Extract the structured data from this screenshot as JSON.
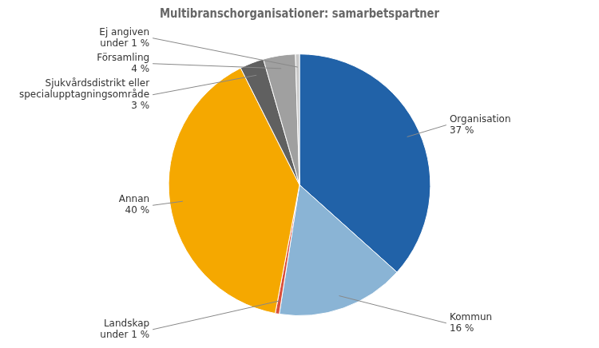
{
  "chart_data": {
    "type": "pie",
    "title": "Multibranschorganisationer: samarbetspartner",
    "categories": [
      "Organisation",
      "Kommun",
      "Landskap",
      "Annan",
      "Sjukvårdsdistrikt eller\nspecialupptagningsområde",
      "Församling",
      "Ej angiven"
    ],
    "values": [
      37,
      16,
      0.5,
      40,
      3,
      4,
      0.5
    ],
    "value_labels": [
      "37 %",
      "16 %",
      "under 1 %",
      "40 %",
      "3 %",
      "4 %",
      "under 1 %"
    ],
    "data_labels": true,
    "colors": [
      "#2162a8",
      "#8ab4d5",
      "#d94f3b",
      "#f5a800",
      "#606060",
      "#a0a0a0",
      "#c8c8c8"
    ]
  }
}
